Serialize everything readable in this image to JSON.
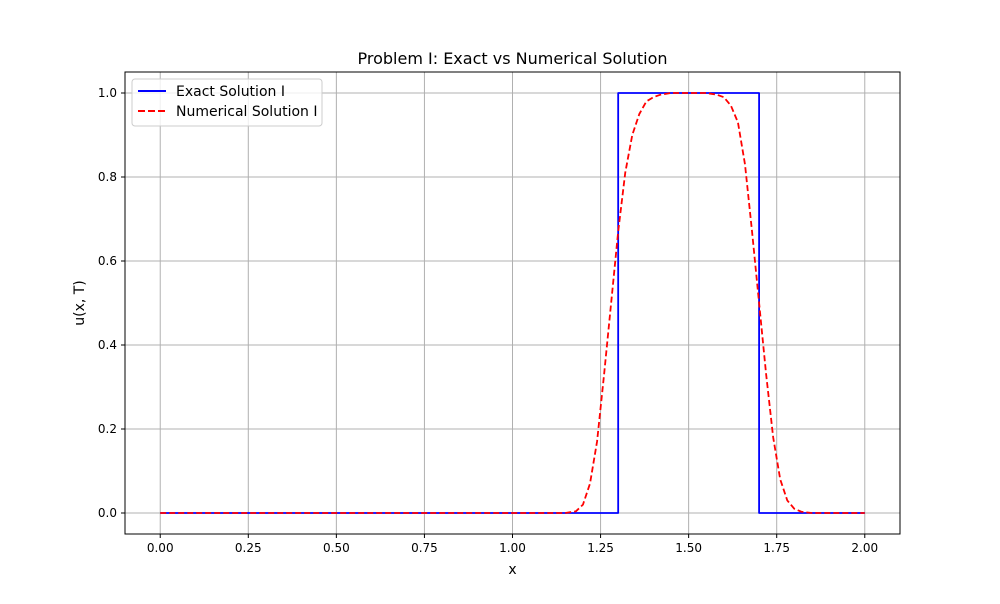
{
  "chart_data": {
    "type": "line",
    "title": "Problem I: Exact vs Numerical Solution",
    "xlabel": "x",
    "ylabel": "u(x, T)",
    "xlim": [
      -0.1,
      2.1
    ],
    "ylim": [
      -0.05,
      1.05
    ],
    "xticks": [
      0.0,
      0.25,
      0.5,
      0.75,
      1.0,
      1.25,
      1.5,
      1.75,
      2.0
    ],
    "xtick_labels": [
      "0.00",
      "0.25",
      "0.50",
      "0.75",
      "1.00",
      "1.25",
      "1.50",
      "1.75",
      "2.00"
    ],
    "yticks": [
      0.0,
      0.2,
      0.4,
      0.6,
      0.8,
      1.0
    ],
    "ytick_labels": [
      "0.0",
      "0.2",
      "0.4",
      "0.6",
      "0.8",
      "1.0"
    ],
    "grid": true,
    "legend_position": "top-left",
    "series": [
      {
        "name": "Exact Solution I",
        "color": "#0000ff",
        "style": "solid",
        "x": [
          0.0,
          1.3,
          1.3,
          1.7,
          1.7,
          2.0
        ],
        "y": [
          0.0,
          0.0,
          1.0,
          1.0,
          0.0,
          0.0
        ]
      },
      {
        "name": "Numerical Solution I",
        "color": "#ff0000",
        "style": "dashed",
        "x": [
          0.0,
          1.15,
          1.18,
          1.2,
          1.22,
          1.24,
          1.26,
          1.28,
          1.3,
          1.32,
          1.34,
          1.36,
          1.38,
          1.4,
          1.42,
          1.45,
          1.5,
          1.55,
          1.58,
          1.6,
          1.62,
          1.64,
          1.66,
          1.68,
          1.7,
          1.72,
          1.74,
          1.76,
          1.78,
          1.8,
          1.82,
          1.85,
          2.0
        ],
        "y": [
          0.0,
          0.0,
          0.004,
          0.02,
          0.07,
          0.17,
          0.33,
          0.5,
          0.67,
          0.81,
          0.9,
          0.95,
          0.98,
          0.99,
          0.996,
          1.0,
          1.0,
          1.0,
          0.996,
          0.99,
          0.97,
          0.93,
          0.83,
          0.67,
          0.5,
          0.33,
          0.18,
          0.08,
          0.03,
          0.01,
          0.003,
          0.0,
          0.0
        ]
      }
    ]
  }
}
